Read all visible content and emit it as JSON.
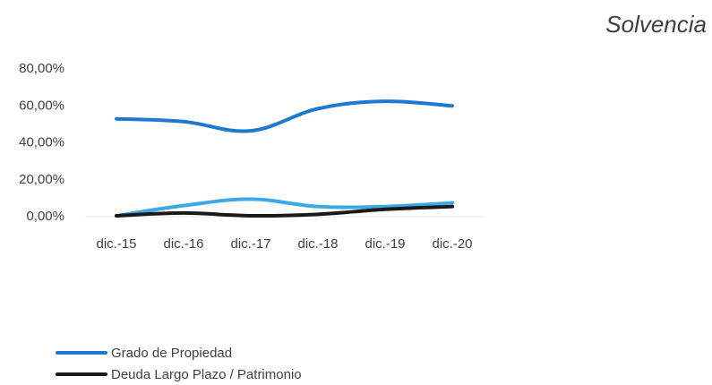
{
  "chart_data": {
    "type": "line",
    "title": "Solvencia",
    "categories": [
      "dic.-15",
      "dic.-16",
      "dic.-17",
      "dic.-18",
      "dic.-19",
      "dic.-20"
    ],
    "y_ticks": [
      "0,00%",
      "20,00%",
      "40,00%",
      "60,00%",
      "80,00%"
    ],
    "ylim": [
      0,
      80
    ],
    "grid": false,
    "legend_position": "bottom-left",
    "series": [
      {
        "name": "Grado de Propiedad",
        "color": "#1f78d1",
        "values": [
          52.5,
          51.0,
          46.0,
          58.0,
          62.0,
          59.5
        ]
      },
      {
        "name": "",
        "color": "#3ea7e6",
        "values": [
          0.0,
          5.5,
          9.0,
          5.0,
          5.0,
          7.0
        ]
      },
      {
        "name": "Deuda Largo Plazo / Patrimonio",
        "color": "#1a1a1a",
        "values": [
          0.0,
          1.5,
          0.0,
          0.8,
          3.5,
          5.0
        ]
      }
    ]
  }
}
